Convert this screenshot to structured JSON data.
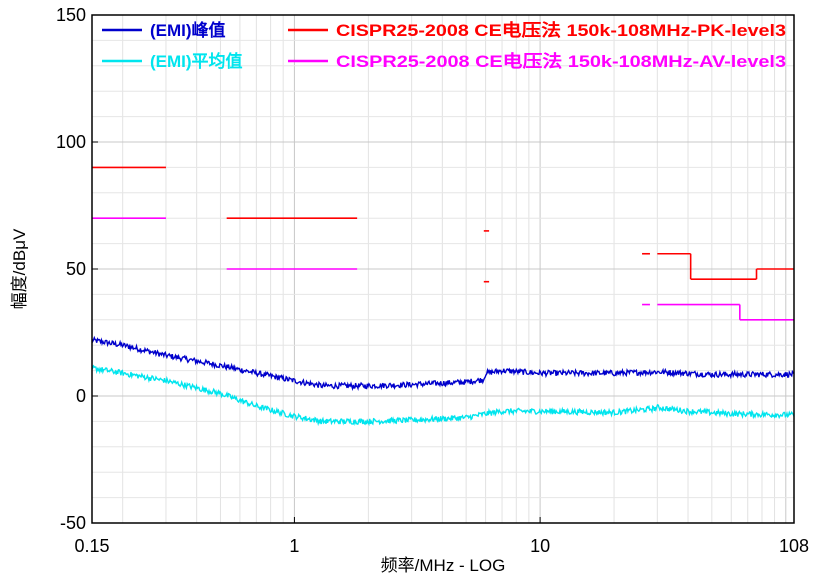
{
  "chart_data": {
    "type": "line",
    "xscale": "log",
    "xlabel": "频率/MHz - LOG",
    "ylabel": "幅度/dBμV",
    "xlim": [
      0.15,
      108
    ],
    "ylim": [
      -50,
      150
    ],
    "xticks": [
      {
        "value": 0.15,
        "label": "0.15"
      },
      {
        "value": 1,
        "label": "1"
      },
      {
        "value": 10,
        "label": "10"
      },
      {
        "value": 108,
        "label": "108"
      }
    ],
    "yticks": [
      {
        "value": 150,
        "label": "150"
      },
      {
        "value": 100,
        "label": "100"
      },
      {
        "value": 50,
        "label": "50"
      },
      {
        "value": 0,
        "label": "0"
      },
      {
        "value": -50,
        "label": "-50"
      }
    ],
    "grid": true,
    "legend": {
      "placement": "top",
      "items": [
        {
          "key": "emi_peak",
          "label": "(EMI)峰值",
          "color": "#0000cc"
        },
        {
          "key": "limit_pk",
          "label": "CISPR25-2008 CE电压法 150k-108MHz-PK-level3",
          "color": "#ff0000"
        },
        {
          "key": "emi_avg",
          "label": "(EMI)平均值",
          "color": "#00e5ee"
        },
        {
          "key": "limit_av",
          "label": "CISPR25-2008 CE电压法 150k-108MHz-AV-level3",
          "color": "#ff00ff"
        }
      ]
    },
    "series": [
      {
        "key": "emi_peak",
        "color": "#0000cc",
        "kind": "measurement",
        "points": [
          [
            0.15,
            22
          ],
          [
            0.2,
            20
          ],
          [
            0.3,
            16
          ],
          [
            0.5,
            12
          ],
          [
            0.7,
            9
          ],
          [
            1.0,
            6
          ],
          [
            1.3,
            4
          ],
          [
            2.0,
            4
          ],
          [
            3.0,
            4.5
          ],
          [
            5.0,
            5.5
          ],
          [
            5.9,
            6.5
          ],
          [
            6.0,
            9
          ],
          [
            7.0,
            10
          ],
          [
            10,
            9
          ],
          [
            20,
            9
          ],
          [
            30,
            9.5
          ],
          [
            50,
            8.5
          ],
          [
            108,
            8.5
          ]
        ]
      },
      {
        "key": "emi_avg",
        "color": "#00e5ee",
        "kind": "measurement",
        "points": [
          [
            0.15,
            11
          ],
          [
            0.2,
            9
          ],
          [
            0.3,
            6
          ],
          [
            0.5,
            1
          ],
          [
            0.7,
            -4
          ],
          [
            1.0,
            -8
          ],
          [
            1.3,
            -10
          ],
          [
            2.0,
            -10
          ],
          [
            3.0,
            -9.5
          ],
          [
            5.0,
            -8.5
          ],
          [
            6.0,
            -7
          ],
          [
            7.0,
            -6
          ],
          [
            10,
            -6
          ],
          [
            20,
            -6.5
          ],
          [
            29,
            -5
          ],
          [
            30,
            -4.5
          ],
          [
            40,
            -6
          ],
          [
            60,
            -7
          ],
          [
            108,
            -7.5
          ]
        ]
      }
    ],
    "limits": [
      {
        "key": "limit_pk",
        "color": "#ff0000",
        "segments": [
          {
            "x": [
              0.15,
              0.3
            ],
            "y": 90
          },
          {
            "x": [
              0.53,
              1.8
            ],
            "y": 70
          },
          {
            "x": [
              5.9,
              6.2
            ],
            "y": 65
          },
          {
            "x": [
              5.9,
              6.2
            ],
            "y": 45
          },
          {
            "x": [
              26,
              28
            ],
            "y": 56
          },
          {
            "x": [
              30,
              41
            ],
            "y": 56
          },
          {
            "x": [
              41,
              76
            ],
            "y": 46
          },
          {
            "x": [
              76,
              108
            ],
            "y": 50
          }
        ],
        "verticals": [
          {
            "x": 41,
            "y": [
              46,
              56
            ]
          },
          {
            "x": 76,
            "y": [
              46,
              50
            ]
          }
        ]
      },
      {
        "key": "limit_av",
        "color": "#ff00ff",
        "segments": [
          {
            "x": [
              0.15,
              0.3
            ],
            "y": 70
          },
          {
            "x": [
              0.53,
              1.8
            ],
            "y": 50
          },
          {
            "x": [
              26,
              28
            ],
            "y": 36
          },
          {
            "x": [
              30,
              65
            ],
            "y": 36
          },
          {
            "x": [
              65,
              108
            ],
            "y": 30
          }
        ],
        "verticals": [
          {
            "x": 65,
            "y": [
              30,
              36
            ]
          }
        ]
      }
    ]
  }
}
